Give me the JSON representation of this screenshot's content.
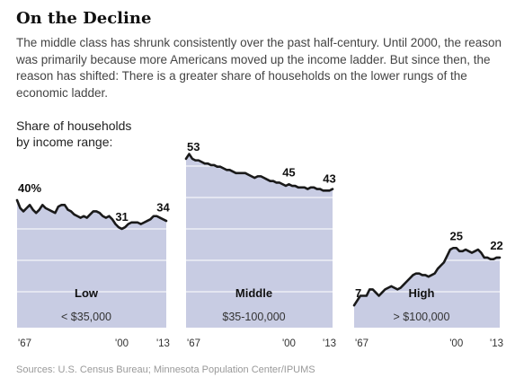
{
  "title": "On the Decline",
  "subtitle": "The middle class has shrunk consistently over the past half-century. Until 2000, the reason was primarily because more Americans moved up the income ladder. But since then, the reason has shifted: There is a greater share of households on the lower rungs of the economic ladder.",
  "ylabel_line1": "Share of households",
  "ylabel_line2": "by income range:",
  "source": "Sources: U.S. Census Bureau; Minnesota Population Center/IPUMS",
  "colors": {
    "area": "#c8cce3",
    "line": "#1a1a1a",
    "grid": "#ffffff"
  },
  "chart_data": [
    {
      "type": "area",
      "series_label": "Low",
      "range_label": "< $35,000",
      "ylim": [
        0,
        60
      ],
      "x_ticks": [
        {
          "x": 1967,
          "label": "'67"
        },
        {
          "x": 2000,
          "label": "'00"
        },
        {
          "x": 2013,
          "label": "'13"
        }
      ],
      "annotations": [
        {
          "x": 1967,
          "y": 40,
          "text": "40%"
        },
        {
          "x": 2000,
          "y": 31,
          "text": "31"
        },
        {
          "x": 2013,
          "y": 34,
          "text": "34"
        }
      ],
      "x": [
        1967,
        1968,
        1969,
        1970,
        1971,
        1972,
        1973,
        1974,
        1975,
        1976,
        1977,
        1978,
        1979,
        1980,
        1981,
        1982,
        1983,
        1984,
        1985,
        1986,
        1987,
        1988,
        1989,
        1990,
        1991,
        1992,
        1993,
        1994,
        1995,
        1996,
        1997,
        1998,
        1999,
        2000,
        2001,
        2002,
        2003,
        2004,
        2005,
        2006,
        2007,
        2008,
        2009,
        2010,
        2011,
        2012,
        2013,
        2014
      ],
      "values": [
        40,
        37.5,
        36.5,
        37.5,
        38.5,
        37,
        36,
        37,
        38.5,
        37.5,
        37,
        36.5,
        36,
        38,
        38.5,
        38.5,
        37,
        36.5,
        35.5,
        35,
        34.5,
        35,
        34.5,
        35.5,
        36.5,
        36.5,
        36,
        35,
        34.5,
        35,
        34,
        32.5,
        31.5,
        31,
        31.5,
        32.5,
        33,
        33,
        33,
        32.5,
        33,
        33.5,
        34,
        35,
        35,
        34.5,
        34,
        33.5
      ]
    },
    {
      "type": "area",
      "series_label": "Middle",
      "range_label": "$35-100,000",
      "ylim": [
        0,
        60
      ],
      "x_ticks": [
        {
          "x": 1967,
          "label": "'67"
        },
        {
          "x": 2000,
          "label": "'00"
        },
        {
          "x": 2013,
          "label": "'13"
        }
      ],
      "annotations": [
        {
          "x": 1967,
          "y": 53,
          "text": "53"
        },
        {
          "x": 2000,
          "y": 45,
          "text": "45"
        },
        {
          "x": 2013,
          "y": 43,
          "text": "43"
        }
      ],
      "x": [
        1967,
        1968,
        1969,
        1970,
        1971,
        1972,
        1973,
        1974,
        1975,
        1976,
        1977,
        1978,
        1979,
        1980,
        1981,
        1982,
        1983,
        1984,
        1985,
        1986,
        1987,
        1988,
        1989,
        1990,
        1991,
        1992,
        1993,
        1994,
        1995,
        1996,
        1997,
        1998,
        1999,
        2000,
        2001,
        2002,
        2003,
        2004,
        2005,
        2006,
        2007,
        2008,
        2009,
        2010,
        2011,
        2012,
        2013,
        2014
      ],
      "values": [
        53,
        54.5,
        53,
        52.5,
        52.5,
        52,
        51.5,
        51.5,
        51,
        51,
        50.5,
        50.5,
        50,
        49.5,
        49.5,
        49,
        48.5,
        48.5,
        48.5,
        48.5,
        48,
        47.5,
        47,
        47.5,
        47.5,
        47,
        46.5,
        46,
        46,
        45.5,
        45.5,
        45,
        44.5,
        45,
        44.5,
        44.5,
        44,
        44,
        44,
        43.5,
        44,
        44,
        43.5,
        43.5,
        43,
        43,
        43,
        43.5
      ]
    },
    {
      "type": "area",
      "series_label": "High",
      "range_label": "> $100,000",
      "ylim": [
        0,
        60
      ],
      "x_ticks": [
        {
          "x": 1967,
          "label": "'67"
        },
        {
          "x": 2000,
          "label": "'00"
        },
        {
          "x": 2013,
          "label": "'13"
        }
      ],
      "annotations": [
        {
          "x": 1967,
          "y": 7,
          "text": "7"
        },
        {
          "x": 2000,
          "y": 25,
          "text": "25"
        },
        {
          "x": 2013,
          "y": 22,
          "text": "22"
        }
      ],
      "x": [
        1967,
        1968,
        1969,
        1970,
        1971,
        1972,
        1973,
        1974,
        1975,
        1976,
        1977,
        1978,
        1979,
        1980,
        1981,
        1982,
        1983,
        1984,
        1985,
        1986,
        1987,
        1988,
        1989,
        1990,
        1991,
        1992,
        1993,
        1994,
        1995,
        1996,
        1997,
        1998,
        1999,
        2000,
        2001,
        2002,
        2003,
        2004,
        2005,
        2006,
        2007,
        2008,
        2009,
        2010,
        2011,
        2012,
        2013,
        2014
      ],
      "values": [
        7,
        8.5,
        10,
        10,
        10,
        12,
        12,
        11,
        10,
        11,
        12,
        12.5,
        13,
        12.5,
        12,
        12.5,
        13.5,
        14.5,
        15.5,
        16.5,
        17,
        17,
        16.5,
        16.5,
        16,
        16.5,
        17,
        18.5,
        19.5,
        20.5,
        22.5,
        24.5,
        25,
        25,
        24,
        24,
        24.5,
        24,
        23.5,
        24,
        24.5,
        23.5,
        22,
        22,
        21.5,
        21.5,
        22,
        22
      ]
    }
  ]
}
